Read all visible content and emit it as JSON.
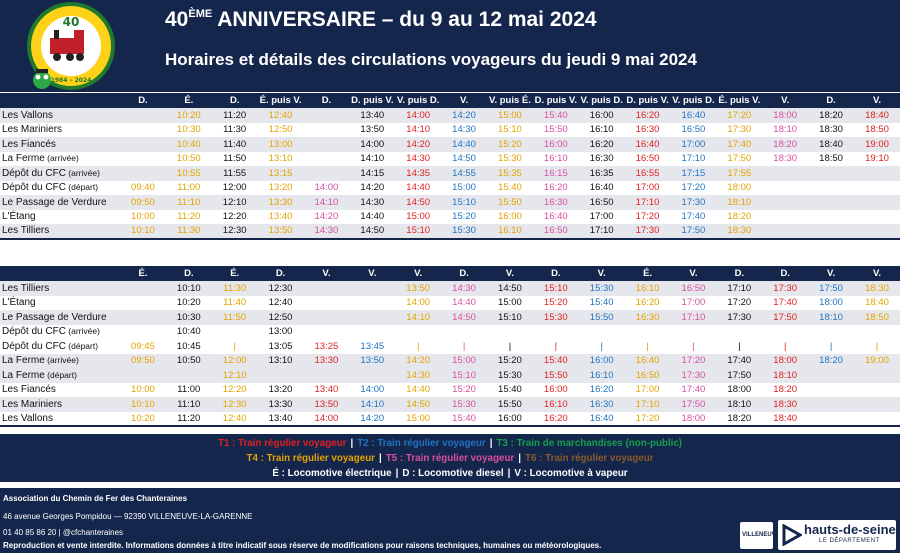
{
  "header": {
    "title_main": "40",
    "title_sup": "ÈME",
    "title_rest": " ANNIVERSAIRE – du 9 au 12 mai 2024",
    "subtitle": "Horaires et détails des circulations voyageurs du jeudi 9 mai 2024",
    "logo_text_top": "Association du Chemin de Fer des Chanteraines",
    "logo_number": "40",
    "logo_years": "1984 – 2024"
  },
  "colors": {
    "navy": "#15264c",
    "T1": "#e02020",
    "T2": "#1f74c4",
    "T3": "#14a04a",
    "T4": "#e3a400",
    "T5": "#d74fa0",
    "T6": "#8a5a2a"
  },
  "table1": {
    "headers": [
      "D.",
      "É.",
      "D.",
      "É. puis V.",
      "D.",
      "D. puis V.",
      "V. puis D.",
      "V.",
      "V. puis É.",
      "D. puis V.",
      "V. puis D.",
      "D. puis V.",
      "V. puis D.",
      "É. puis V.",
      "V.",
      "D.",
      "V."
    ],
    "col_colors": [
      "c3",
      "c3",
      "ck",
      "c3",
      "c4",
      "ck",
      "c0",
      "c1",
      "c3",
      "c4",
      "ck",
      "c0",
      "c1",
      "c3",
      "c4",
      "ck",
      "c0"
    ],
    "rows": [
      {
        "station": "Les Vallons",
        "note": "",
        "alt": true,
        "times": [
          "",
          "10:20",
          "11:20",
          "12:40",
          "",
          "13:40",
          "14:00",
          "14:20",
          "15:00",
          "15:40",
          "16:00",
          "16:20",
          "16:40",
          "17:20",
          "18:00",
          "18:20",
          "18:40"
        ]
      },
      {
        "station": "Les Mariniers",
        "note": "",
        "alt": false,
        "times": [
          "",
          "10:30",
          "11:30",
          "12:50",
          "",
          "13:50",
          "14:10",
          "14:30",
          "15:10",
          "15:50",
          "16:10",
          "16:30",
          "16:50",
          "17:30",
          "18:10",
          "18:30",
          "18:50"
        ]
      },
      {
        "station": "Les Fiancés",
        "note": "",
        "alt": true,
        "times": [
          "",
          "10:40",
          "11:40",
          "13:00",
          "",
          "14:00",
          "14:20",
          "14:40",
          "15:20",
          "16:00",
          "16:20",
          "16:40",
          "17:00",
          "17:40",
          "18:20",
          "18:40",
          "19:00"
        ]
      },
      {
        "station": "La Ferme",
        "note": "(arrivée)",
        "alt": false,
        "times": [
          "",
          "10:50",
          "11:50",
          "13:10",
          "",
          "14:10",
          "14:30",
          "14:50",
          "15:30",
          "16:10",
          "16:30",
          "16:50",
          "17:10",
          "17:50",
          "18:30",
          "18:50",
          "19:10"
        ]
      },
      {
        "station": "Dépôt du CFC",
        "note": "(arrivée)",
        "alt": true,
        "times": [
          "",
          "10:55",
          "11:55",
          "13:15",
          "",
          "14:15",
          "14:35",
          "14:55",
          "15:35",
          "16:15",
          "16:35",
          "16:55",
          "17:15",
          "17:55",
          "",
          "",
          ""
        ]
      },
      {
        "station": "Dépôt du CFC",
        "note": "(départ)",
        "alt": false,
        "times": [
          "09:40",
          "11:00",
          "12:00",
          "13:20",
          "14:00",
          "14:20",
          "14:40",
          "15:00",
          "15:40",
          "16:20",
          "16:40",
          "17:00",
          "17:20",
          "18:00",
          "",
          "",
          ""
        ]
      },
      {
        "station": "Le Passage de Verdure",
        "note": "",
        "alt": true,
        "times": [
          "09:50",
          "11:10",
          "12:10",
          "13:30",
          "14:10",
          "14:30",
          "14:50",
          "15:10",
          "15:50",
          "16:30",
          "16:50",
          "17:10",
          "17:30",
          "18:10",
          "",
          "",
          ""
        ]
      },
      {
        "station": "L'Étang",
        "note": "",
        "alt": false,
        "times": [
          "10:00",
          "11:20",
          "12:20",
          "13:40",
          "14:20",
          "14:40",
          "15:00",
          "15:20",
          "16:00",
          "16:40",
          "17:00",
          "17:20",
          "17:40",
          "18:20",
          "",
          "",
          ""
        ]
      },
      {
        "station": "Les Tilliers",
        "note": "",
        "alt": true,
        "times": [
          "10:10",
          "11:30",
          "12:30",
          "13:50",
          "14:30",
          "14:50",
          "15:10",
          "15:30",
          "16:10",
          "16:50",
          "17:10",
          "17:30",
          "17:50",
          "18:30",
          "",
          "",
          ""
        ]
      }
    ]
  },
  "table2": {
    "headers": [
      "É.",
      "D.",
      "É.",
      "D.",
      "V.",
      "V.",
      "V.",
      "D.",
      "V.",
      "D.",
      "V.",
      "É.",
      "V.",
      "D.",
      "D.",
      "V.",
      "V."
    ],
    "col_colors": [
      "c3",
      "ck",
      "c3",
      "ck",
      "c0",
      "c1",
      "c3",
      "c4",
      "ck",
      "c0",
      "c1",
      "c3",
      "c4",
      "ck",
      "c0",
      "c1",
      "c3"
    ],
    "rows": [
      {
        "station": "Les Tilliers",
        "note": "",
        "alt": true,
        "times": [
          "",
          "10:10",
          "11:30",
          "12:30",
          "",
          "",
          "13:50",
          "14:30",
          "14:50",
          "15:10",
          "15:30",
          "16:10",
          "16:50",
          "17:10",
          "17:30",
          "17:50",
          "18:30"
        ]
      },
      {
        "station": "L'Étang",
        "note": "",
        "alt": false,
        "times": [
          "",
          "10:20",
          "11:40",
          "12:40",
          "",
          "",
          "14:00",
          "14:40",
          "15:00",
          "15:20",
          "15:40",
          "16:20",
          "17:00",
          "17:20",
          "17:40",
          "18:00",
          "18:40"
        ]
      },
      {
        "station": "Le Passage de Verdure",
        "note": "",
        "alt": true,
        "times": [
          "",
          "10:30",
          "11:50",
          "12:50",
          "",
          "",
          "14:10",
          "14:50",
          "15:10",
          "15:30",
          "15:50",
          "16:30",
          "17:10",
          "17:30",
          "17:50",
          "18:10",
          "18:50"
        ]
      },
      {
        "station": "Dépôt du CFC",
        "note": "(arrivée)",
        "alt": false,
        "times": [
          "",
          "10:40",
          "",
          "13:00",
          "",
          "",
          "",
          "",
          "",
          "",
          "",
          "",
          "",
          "",
          "",
          "",
          ""
        ]
      },
      {
        "station": "Dépôt du CFC",
        "note": "(départ)",
        "alt": false,
        "times": [
          "09:45",
          "10:45",
          "|",
          "13:05",
          "13:25",
          "13:45",
          "|",
          "|",
          "|",
          "|",
          "|",
          "|",
          "|",
          "|",
          "|",
          "|",
          "|"
        ]
      },
      {
        "station": "La Ferme",
        "note": "(arrivée)",
        "alt": true,
        "times": [
          "09:50",
          "10:50",
          "12:00",
          "13:10",
          "13:30",
          "13:50",
          "14:20",
          "15:00",
          "15:20",
          "15:40",
          "16:00",
          "16:40",
          "17:20",
          "17:40",
          "18:00",
          "18:20",
          "19:00"
        ]
      },
      {
        "station": "La Ferme",
        "note": "(départ)",
        "alt": true,
        "times": [
          "",
          "",
          "12:10",
          "",
          "",
          "",
          "14:30",
          "15:10",
          "15:30",
          "15:50",
          "16:10",
          "16:50",
          "17:30",
          "17:50",
          "18:10",
          "",
          ""
        ]
      },
      {
        "station": "Les Fiancés",
        "note": "",
        "alt": false,
        "times": [
          "10:00",
          "11:00",
          "12:20",
          "13:20",
          "13:40",
          "14:00",
          "14:40",
          "15:20",
          "15:40",
          "16:00",
          "16:20",
          "17:00",
          "17:40",
          "18:00",
          "18:20",
          "",
          ""
        ]
      },
      {
        "station": "Les Mariniers",
        "note": "",
        "alt": true,
        "times": [
          "10:10",
          "11:10",
          "12:30",
          "13:30",
          "13:50",
          "14:10",
          "14:50",
          "15:30",
          "15:50",
          "16:10",
          "16:30",
          "17:10",
          "17:50",
          "18:10",
          "18:30",
          "",
          ""
        ]
      },
      {
        "station": "Les Vallons",
        "note": "",
        "alt": false,
        "times": [
          "10:20",
          "11:20",
          "12:40",
          "13:40",
          "14:00",
          "14:20",
          "15:00",
          "15:40",
          "16:00",
          "16:20",
          "16:40",
          "17:20",
          "18:00",
          "18:20",
          "18:40",
          "",
          ""
        ]
      }
    ]
  },
  "legend": {
    "line1": [
      {
        "text": "T1 : Train régulier voyageur",
        "cls": "c0"
      },
      {
        "text": "T2 : Train régulier voyageur",
        "cls": "c1"
      },
      {
        "text": "T3 : Train de marchandises (non-public)",
        "cls": "c2"
      }
    ],
    "line2": [
      {
        "text": "T4 : Train régulier voyageur",
        "cls": "c3"
      },
      {
        "text": "T5 : Train régulier voyageur",
        "cls": "c4"
      },
      {
        "text": "T6 : Train régulier voyageur",
        "cls": "c5"
      }
    ],
    "line3": [
      "É : Locomotive électrique",
      "D : Locomotive diesel",
      "V : Locomotive à vapeur"
    ],
    "separator": "|"
  },
  "footer": {
    "association": "Association du Chemin de Fer des Chanteraines",
    "address": "46 avenue Georges Pompidou — 92390 VILLENEUVE-LA-GARENNE",
    "contact": "01 40 85 86 20 | @cfchanteraines",
    "notice": "Reproduction et vente interdite. Informations données à titre indicatif sous réserve de modifications pour raisons techniques, humaines ou météorologiques."
  },
  "logos": {
    "partner_text": "VILLENEUVE",
    "hds_main": "hauts-de-seine",
    "hds_sub": "LE DÉPARTEMENT"
  }
}
